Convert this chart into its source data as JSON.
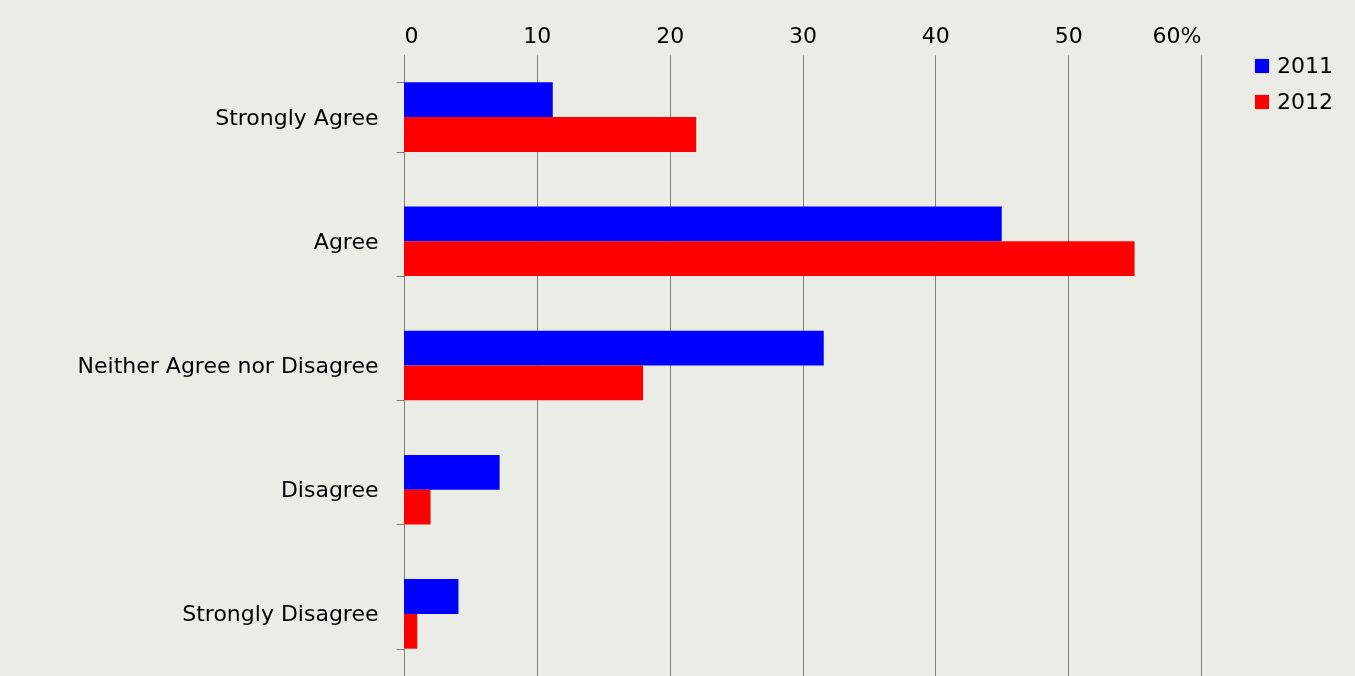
{
  "chart_data": {
    "type": "bar",
    "orientation": "horizontal",
    "categories": [
      "Strongly Agree",
      "Agree",
      "Neither Agree nor Disagree",
      "Disagree",
      "Strongly Disagree"
    ],
    "series": [
      {
        "name": "2011",
        "color": "#0000ff",
        "values": [
          11.2,
          45,
          31.6,
          7.2,
          4.1
        ]
      },
      {
        "name": "2012",
        "color": "#ff0000",
        "values": [
          22,
          55,
          18,
          2,
          1
        ]
      }
    ],
    "xlim": [
      0,
      60
    ],
    "xticks": [
      0,
      10,
      20,
      30,
      40,
      50,
      {
        "value": 60,
        "label": "60%"
      }
    ],
    "grid": "x",
    "legend": "right"
  }
}
